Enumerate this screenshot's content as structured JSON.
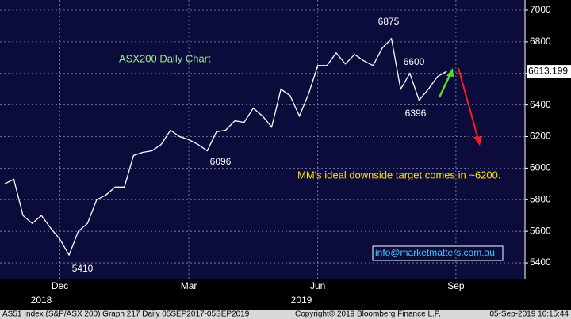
{
  "chart_data": {
    "type": "line",
    "title": "ASX200 Daily Chart",
    "categories": [
      null,
      null,
      null,
      null,
      null,
      null,
      "Dec",
      null,
      null,
      null,
      null,
      null,
      null,
      null,
      null,
      null,
      null,
      null,
      null,
      null,
      "Mar",
      null,
      null,
      null,
      null,
      null,
      null,
      null,
      null,
      null,
      null,
      null,
      null,
      null,
      "Jun",
      null,
      null,
      null,
      null,
      null,
      null,
      null,
      null,
      null,
      null,
      null,
      null,
      null,
      null,
      "Sep",
      null,
      null,
      null,
      null,
      null,
      null,
      null
    ],
    "x_group_labels": [
      "2018",
      "2019"
    ],
    "series": [
      {
        "name": "AS51 Index",
        "color": "#ffffff",
        "values": [
          5900,
          5930,
          5700,
          5650,
          5700,
          5620,
          5550,
          5450,
          5600,
          5650,
          5800,
          5830,
          5880,
          5880,
          6080,
          6100,
          6110,
          6150,
          6240,
          6200,
          6180,
          6150,
          6110,
          6230,
          6240,
          6300,
          6290,
          6380,
          6330,
          6260,
          6500,
          6460,
          6330,
          6470,
          6650,
          6650,
          6730,
          6660,
          6720,
          6680,
          6650,
          6760,
          6820,
          6500,
          6600,
          6430,
          6500,
          6580,
          6613.199,
          null,
          null,
          null,
          null,
          null,
          null,
          null,
          null
        ]
      }
    ],
    "last_price": 6613.199,
    "ylim": [
      5300,
      7065
    ],
    "yticks": [
      5400,
      5600,
      5800,
      6000,
      6200,
      6400,
      6600,
      6800,
      7000
    ],
    "grid": true,
    "annotations": [
      "6875",
      "6600",
      "6396",
      "6096",
      "5410"
    ],
    "target_note": "MM's ideal downside target comes in ~6200.",
    "contact": "info@marketmatters.com.au",
    "footer": {
      "left": "AS51 Index (S&P/ASX 200) Graph 217  Daily 05SEP2017-05SEP2019",
      "center": "Copyright© 2019 Bloomberg Finance L.P.",
      "right": "05-Sep-2019 16:15:44"
    }
  }
}
